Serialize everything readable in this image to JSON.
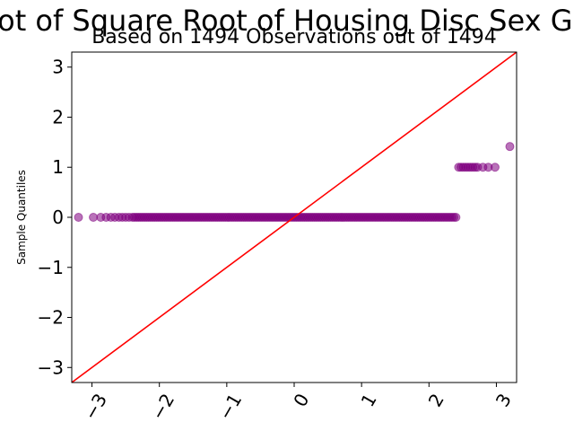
{
  "chart_data": {
    "type": "scatter",
    "title": "QQ Plot of Square Root of Housing Disc Sex Gender",
    "subtitle": "Based on 1494 Observations out of 1494",
    "xlabel": "",
    "ylabel": "Sample Quantiles",
    "xlim": [
      -3.3,
      3.3
    ],
    "ylim": [
      -3.3,
      3.3
    ],
    "x_ticks": [
      -3,
      -2,
      -1,
      0,
      1,
      2,
      3
    ],
    "x_tick_labels": [
      "−3",
      "−2",
      "−1",
      "0",
      "1",
      "2",
      "3"
    ],
    "y_ticks": [
      -3,
      -2,
      -1,
      0,
      1,
      2,
      3
    ],
    "y_tick_labels": [
      "−3",
      "−2",
      "−1",
      "0",
      "1",
      "2",
      "3"
    ],
    "x_tick_rotation_deg": 60,
    "grid": false,
    "legend": "none",
    "reference_line": {
      "slope": 1,
      "intercept": 0,
      "color": "#ff0000"
    },
    "point_color": "#800080",
    "point_alpha": 0.55,
    "series": [
      {
        "values_note": "",
        "segments": [
          {
            "y": 0,
            "x_from": -2.4,
            "x_to": 2.42,
            "step": 0.03
          },
          {
            "y": 1,
            "x_from": 2.44,
            "x_to": 2.72,
            "step": 0.035
          }
        ],
        "points": [
          {
            "x": -3.2,
            "y": 0
          },
          {
            "x": -2.98,
            "y": 0
          },
          {
            "x": -2.87,
            "y": 0
          },
          {
            "x": -2.79,
            "y": 0
          },
          {
            "x": -2.72,
            "y": 0
          },
          {
            "x": -2.66,
            "y": 0
          },
          {
            "x": -2.6,
            "y": 0
          },
          {
            "x": -2.55,
            "y": 0
          },
          {
            "x": -2.5,
            "y": 0
          },
          {
            "x": -2.45,
            "y": 0
          },
          {
            "x": 2.8,
            "y": 1
          },
          {
            "x": 2.88,
            "y": 1
          },
          {
            "x": 2.98,
            "y": 1
          },
          {
            "x": 3.2,
            "y": 1.414
          }
        ]
      }
    ]
  }
}
